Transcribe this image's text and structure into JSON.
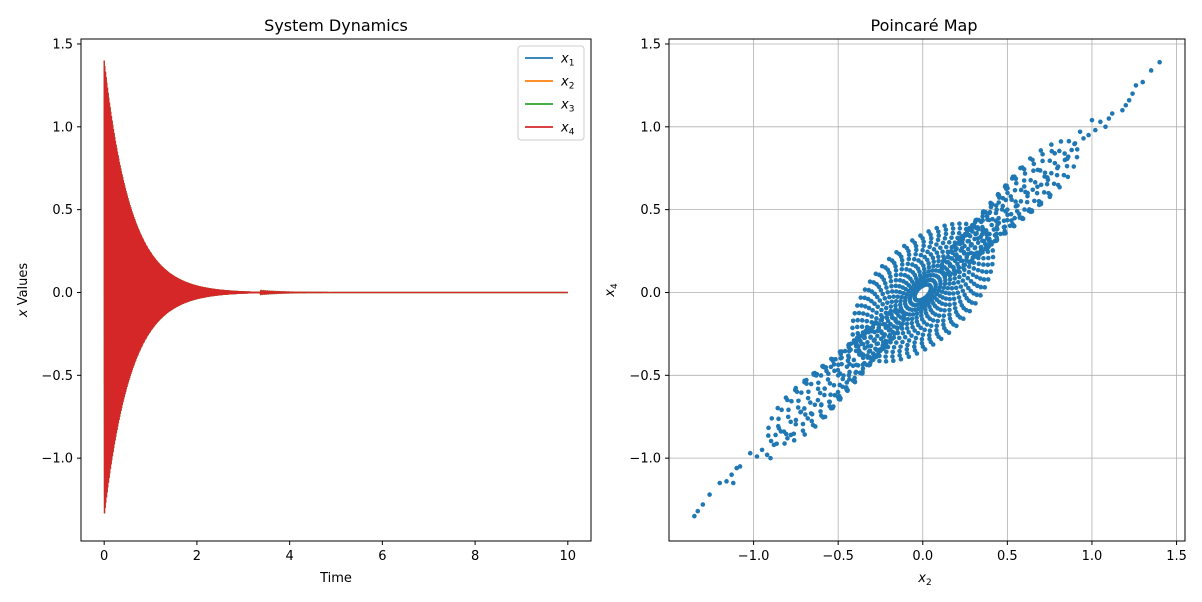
{
  "chart_data": [
    {
      "type": "line",
      "title": "System Dynamics",
      "xlabel": "Time",
      "ylabel": "x Values",
      "xlim": [
        -0.5,
        10.5
      ],
      "ylim": [
        -1.5,
        1.53
      ],
      "xticks": [
        0,
        2,
        4,
        6,
        8,
        10
      ],
      "xtick_labels": [
        "0",
        "2",
        "4",
        "6",
        "8",
        "10"
      ],
      "yticks": [
        -1.0,
        -0.5,
        0.0,
        0.5,
        1.0,
        1.5
      ],
      "ytick_labels": [
        "−1.0",
        "−0.5",
        "0.0",
        "0.5",
        "1.0",
        "1.5"
      ],
      "grid": false,
      "legend_position": "top-right",
      "x_range": [
        0,
        10
      ],
      "envelope": {
        "initial_max": 1.4,
        "initial_min": -1.35,
        "decay_rate": 1.75,
        "final_value": 0.0
      },
      "series": [
        {
          "name": "x1",
          "sub": "1",
          "color": "#1f77b4"
        },
        {
          "name": "x2",
          "sub": "2",
          "color": "#ff7f0e"
        },
        {
          "name": "x3",
          "sub": "3",
          "color": "#2ca02c"
        },
        {
          "name": "x4",
          "sub": "4",
          "color": "#d62728"
        }
      ]
    },
    {
      "type": "scatter",
      "title": "Poincaré Map",
      "xlabel": "x2",
      "ylabel": "x4",
      "xlim": [
        -1.5,
        1.55
      ],
      "ylim": [
        -1.5,
        1.53
      ],
      "xticks": [
        -1.0,
        -0.5,
        0.0,
        0.5,
        1.0,
        1.5
      ],
      "xtick_labels": [
        "−1.0",
        "−0.5",
        "0.0",
        "0.5",
        "1.0",
        "1.5"
      ],
      "yticks": [
        -1.0,
        -0.5,
        0.0,
        0.5,
        1.0,
        1.5
      ],
      "ytick_labels": [
        "−1.0",
        "−0.5",
        "0.0",
        "0.5",
        "1.0",
        "1.5"
      ],
      "grid": true,
      "marker_color": "#1f77b4",
      "points": [
        [
          -1.35,
          -1.35
        ],
        [
          -1.33,
          -1.32
        ],
        [
          -1.3,
          -1.28
        ],
        [
          -1.26,
          -1.22
        ],
        [
          -1.2,
          -1.15
        ],
        [
          -1.16,
          -1.14
        ],
        [
          -1.13,
          -1.1
        ],
        [
          -1.12,
          -1.15
        ],
        [
          -1.1,
          -1.06
        ],
        [
          -1.08,
          -1.05
        ],
        [
          -1.02,
          -0.97
        ],
        [
          -0.98,
          -0.99
        ],
        [
          -0.95,
          -0.95
        ],
        [
          -0.92,
          -0.98
        ],
        [
          -0.9,
          -1.0
        ],
        [
          -0.88,
          -0.92
        ],
        [
          -0.87,
          -0.86
        ],
        [
          -0.85,
          -0.82
        ],
        [
          -0.82,
          -0.84
        ],
        [
          -0.8,
          -0.88
        ],
        [
          -0.78,
          -0.86
        ],
        [
          -0.75,
          -0.77
        ],
        [
          -0.72,
          -0.72
        ],
        [
          -0.7,
          -0.7
        ],
        [
          -0.68,
          -0.76
        ],
        [
          -0.66,
          -0.73
        ],
        [
          -0.62,
          -0.65
        ],
        [
          -0.6,
          -0.68
        ],
        [
          -0.58,
          -0.58
        ],
        [
          -0.55,
          -0.66
        ],
        [
          -0.52,
          -0.62
        ],
        [
          -0.5,
          -0.5
        ],
        [
          1.4,
          1.39
        ],
        [
          1.35,
          1.34
        ],
        [
          1.3,
          1.27
        ],
        [
          1.26,
          1.25
        ],
        [
          1.24,
          1.2
        ],
        [
          1.22,
          1.16
        ],
        [
          1.2,
          1.13
        ],
        [
          1.18,
          1.1
        ],
        [
          1.12,
          1.08
        ],
        [
          1.1,
          1.05
        ],
        [
          1.08,
          1.0
        ],
        [
          1.05,
          1.03
        ],
        [
          1.02,
          0.98
        ],
        [
          1.0,
          1.04
        ],
        [
          0.98,
          0.95
        ],
        [
          0.95,
          0.93
        ],
        [
          0.93,
          0.97
        ],
        [
          0.9,
          0.9
        ],
        [
          0.88,
          0.86
        ],
        [
          0.86,
          0.82
        ],
        [
          0.84,
          0.8
        ],
        [
          0.8,
          0.76
        ],
        [
          0.78,
          0.84
        ],
        [
          0.76,
          0.72
        ],
        [
          0.74,
          0.68
        ],
        [
          0.72,
          0.7
        ],
        [
          0.7,
          0.65
        ],
        [
          0.68,
          0.74
        ],
        [
          0.65,
          0.62
        ],
        [
          0.62,
          0.6
        ],
        [
          0.6,
          0.64
        ],
        [
          0.58,
          0.55
        ],
        [
          0.55,
          0.52
        ],
        [
          0.52,
          0.58
        ],
        [
          0.5,
          0.5
        ],
        [
          0.45,
          0.42
        ],
        [
          0.42,
          0.38
        ],
        [
          0.4,
          0.3
        ],
        [
          0.38,
          0.46
        ],
        [
          0.35,
          0.35
        ]
      ]
    }
  ]
}
